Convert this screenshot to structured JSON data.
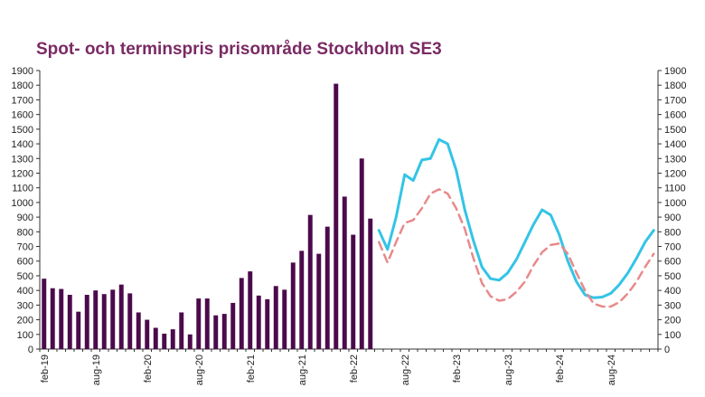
{
  "chart_data": {
    "type": "bar",
    "title": "Spot- och terminspris prisområde Stockholm SE3",
    "title_color": "#7a2a64",
    "ylim": [
      0,
      1900
    ],
    "y_ticks": [
      0,
      100,
      200,
      300,
      400,
      500,
      600,
      700,
      800,
      900,
      1000,
      1100,
      1200,
      1300,
      1400,
      1500,
      1600,
      1700,
      1800,
      1900
    ],
    "y2_ticks": [
      0,
      100,
      200,
      300,
      400,
      500,
      600,
      700,
      800,
      900,
      1000,
      1100,
      1200,
      1300,
      1400,
      1500,
      1600,
      1700,
      1800,
      1900
    ],
    "x_tick_labels": [
      {
        "label": "feb-19",
        "month_index": 0
      },
      {
        "label": "aug-19",
        "month_index": 6
      },
      {
        "label": "feb-20",
        "month_index": 12
      },
      {
        "label": "aug-20",
        "month_index": 18
      },
      {
        "label": "feb-21",
        "month_index": 24
      },
      {
        "label": "aug-21",
        "month_index": 30
      },
      {
        "label": "feb-22",
        "month_index": 36
      },
      {
        "label": "aug-22",
        "month_index": 42
      },
      {
        "label": "feb-23",
        "month_index": 48
      },
      {
        "label": "aug-23",
        "month_index": 54
      },
      {
        "label": "feb-24",
        "month_index": 60
      },
      {
        "label": "aug-24",
        "month_index": 66
      }
    ],
    "months_total": 72,
    "grid": false,
    "legend": "none",
    "bar_color": "#4b0a4b",
    "spot_prices": [
      480,
      415,
      410,
      370,
      255,
      370,
      400,
      375,
      405,
      440,
      380,
      250,
      200,
      145,
      105,
      135,
      250,
      100,
      345,
      345,
      230,
      240,
      315,
      485,
      530,
      365,
      340,
      430,
      405,
      590,
      670,
      915,
      650,
      835,
      1810,
      1040,
      780,
      1300,
      890
    ],
    "forward_series": [
      {
        "style": "solid",
        "color": "#33c4e6",
        "month_index": [
          39,
          40,
          41,
          42,
          43,
          44,
          45,
          46,
          47,
          48,
          49,
          50,
          51,
          52,
          53,
          54,
          55,
          56,
          57,
          58,
          59,
          60,
          61,
          62,
          63,
          64,
          65,
          66,
          67,
          68,
          69,
          70,
          71
        ],
        "values": [
          810,
          680,
          900,
          1190,
          1150,
          1290,
          1300,
          1430,
          1400,
          1220,
          950,
          740,
          560,
          480,
          470,
          520,
          610,
          730,
          850,
          950,
          915,
          780,
          600,
          460,
          370,
          350,
          355,
          380,
          440,
          520,
          620,
          730,
          810
        ]
      },
      {
        "style": "dashed",
        "color": "#e88a8a",
        "month_index": [
          39,
          40,
          41,
          42,
          43,
          44,
          45,
          46,
          47,
          48,
          49,
          50,
          51,
          52,
          53,
          54,
          55,
          56,
          57,
          58,
          59,
          60,
          61,
          62,
          63,
          64,
          65,
          66,
          67,
          68,
          69,
          70,
          71
        ],
        "values": [
          730,
          590,
          730,
          860,
          880,
          960,
          1060,
          1090,
          1060,
          960,
          820,
          620,
          450,
          360,
          330,
          340,
          390,
          460,
          570,
          660,
          710,
          720,
          650,
          520,
          400,
          310,
          290,
          290,
          320,
          380,
          460,
          560,
          650
        ]
      }
    ]
  }
}
